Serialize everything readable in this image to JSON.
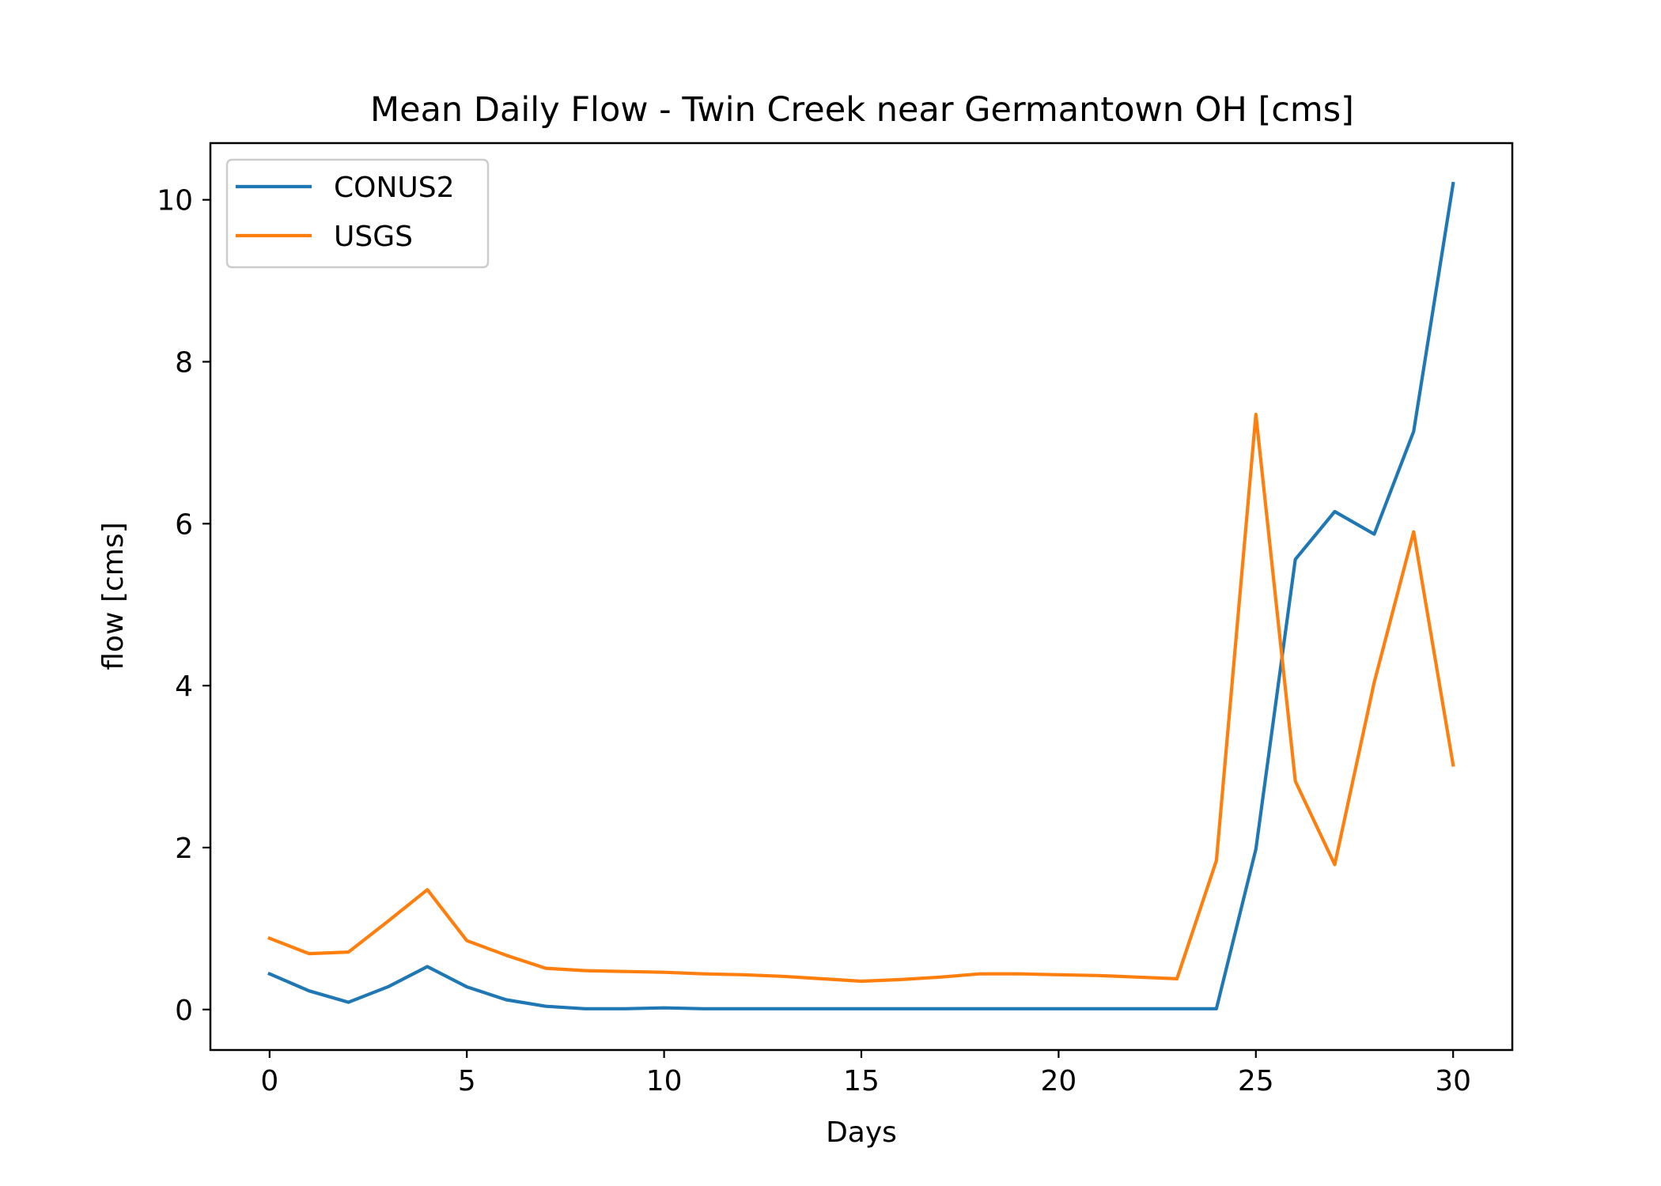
{
  "chart_data": {
    "type": "line",
    "title": "Mean Daily Flow - Twin Creek near Germantown OH [cms]",
    "xlabel": "Days",
    "ylabel": "flow [cms]",
    "xlim": [
      -1.5,
      31.5
    ],
    "ylim": [
      -0.5,
      10.7
    ],
    "xticks": [
      0,
      5,
      10,
      15,
      20,
      25,
      30
    ],
    "yticks": [
      0,
      2,
      4,
      6,
      8,
      10
    ],
    "xtick_labels": [
      "0",
      "5",
      "10",
      "15",
      "20",
      "25",
      "30"
    ],
    "ytick_labels": [
      "0",
      "2",
      "4",
      "6",
      "8",
      "10"
    ],
    "grid": false,
    "legend_position": "top-left",
    "x": [
      0,
      1,
      2,
      3,
      4,
      5,
      6,
      7,
      8,
      9,
      10,
      11,
      12,
      13,
      14,
      15,
      16,
      17,
      18,
      19,
      20,
      21,
      22,
      23,
      24,
      25,
      26,
      27,
      28,
      29,
      30
    ],
    "series": [
      {
        "name": "CONUS2",
        "color": "#1f77b4",
        "values": [
          0.44,
          0.23,
          0.09,
          0.28,
          0.53,
          0.28,
          0.12,
          0.04,
          0.01,
          0.01,
          0.02,
          0.01,
          0.01,
          0.01,
          0.01,
          0.01,
          0.01,
          0.01,
          0.01,
          0.01,
          0.01,
          0.01,
          0.01,
          0.01,
          0.01,
          1.98,
          5.56,
          6.15,
          5.87,
          7.14,
          10.2
        ]
      },
      {
        "name": "USGS",
        "color": "#ff7f0e",
        "values": [
          0.88,
          0.69,
          0.71,
          1.09,
          1.48,
          0.85,
          0.67,
          0.51,
          0.48,
          0.47,
          0.46,
          0.44,
          0.43,
          0.41,
          0.38,
          0.35,
          0.37,
          0.4,
          0.44,
          0.44,
          0.43,
          0.42,
          0.4,
          0.38,
          1.84,
          7.35,
          2.82,
          1.79,
          4.04,
          5.9,
          3.02
        ]
      }
    ]
  }
}
